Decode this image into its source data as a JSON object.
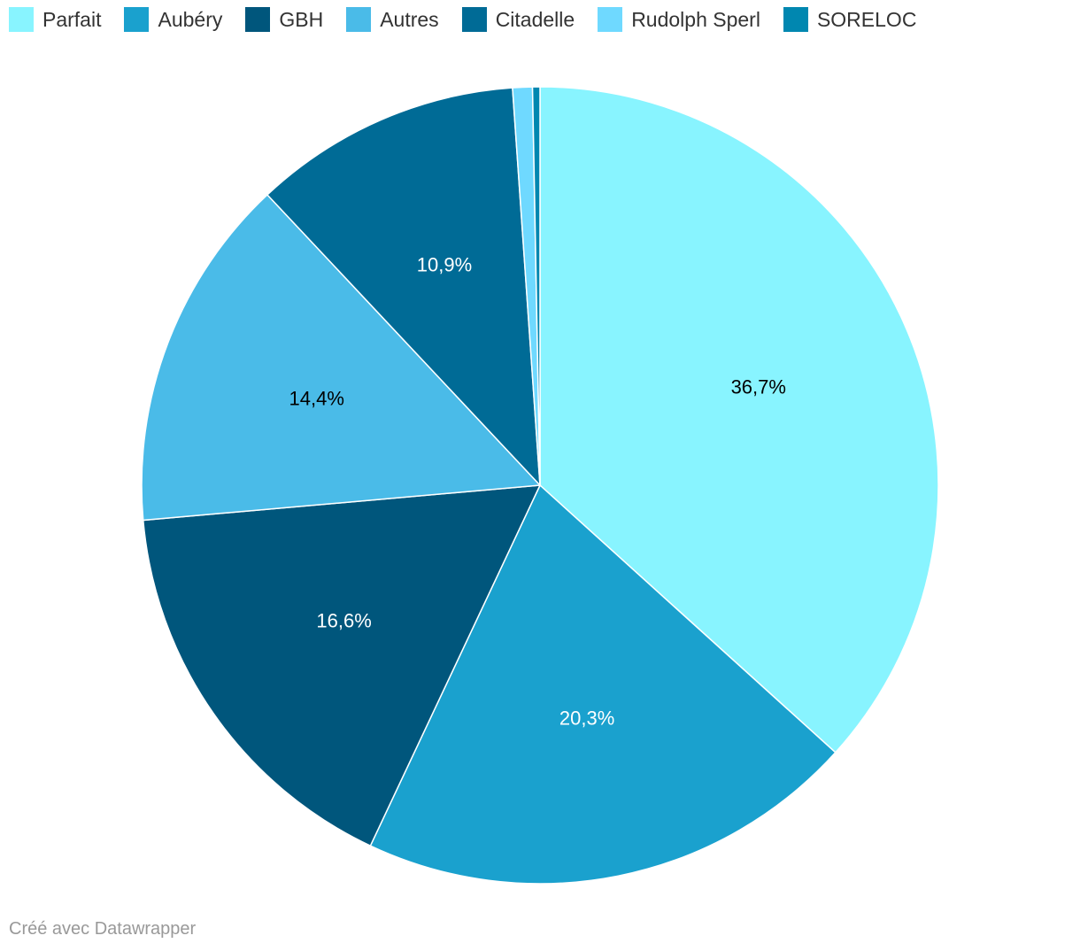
{
  "chart_data": {
    "type": "pie",
    "title": "",
    "slices": [
      {
        "label": "Parfait",
        "value": 36.7,
        "value_label": "36,7%",
        "color": "#88f4ff",
        "label_color": "#000000"
      },
      {
        "label": "Aubéry",
        "value": 20.3,
        "value_label": "20,3%",
        "color": "#1aa1ce",
        "label_color": "#ffffff"
      },
      {
        "label": "GBH",
        "value": 16.6,
        "value_label": "16,6%",
        "color": "#00567c",
        "label_color": "#ffffff"
      },
      {
        "label": "Autres",
        "value": 14.4,
        "value_label": "14,4%",
        "color": "#4abbe8",
        "label_color": "#000000"
      },
      {
        "label": "Citadelle",
        "value": 10.9,
        "value_label": "10,9%",
        "color": "#006b96",
        "label_color": "#ffffff"
      },
      {
        "label": "Rudolph Sperl",
        "value": 0.8,
        "value_label": "",
        "color": "#6fd9ff",
        "label_color": "#000000"
      },
      {
        "label": "SORELOC",
        "value": 0.3,
        "value_label": "",
        "color": "#0087b0",
        "label_color": "#ffffff"
      }
    ],
    "legend_position": "top-left"
  },
  "footer": {
    "credit": "Créé avec Datawrapper"
  }
}
